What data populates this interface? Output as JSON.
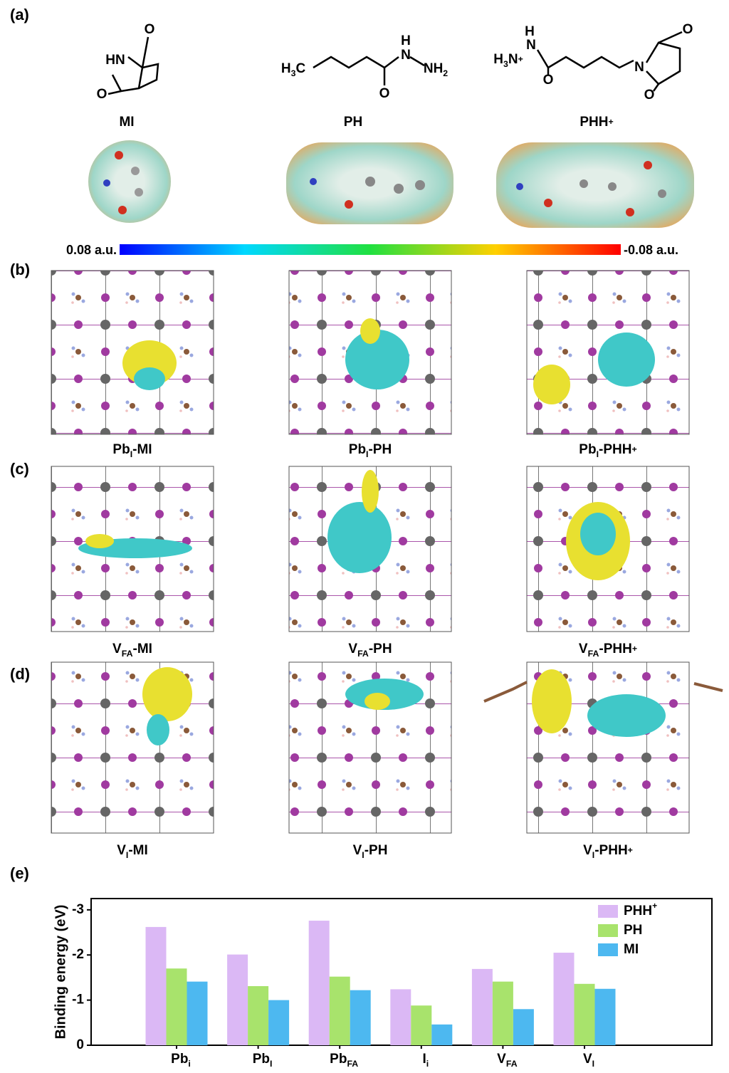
{
  "panel_labels": [
    "(a)",
    "(b)",
    "(c)",
    "(d)",
    "(e)"
  ],
  "molecules": [
    {
      "name": [
        {
          "t": "MI"
        }
      ],
      "atoms": [
        [
          {
            "t": "O"
          }
        ],
        [
          {
            "t": "HN"
          }
        ],
        [
          {
            "t": "O"
          }
        ]
      ]
    },
    {
      "name": [
        {
          "t": "PH"
        }
      ],
      "atoms": [
        [
          {
            "t": "H"
          },
          {
            "sub": "3"
          },
          {
            "t": "C"
          }
        ],
        [
          {
            "t": "H"
          }
        ],
        [
          {
            "t": "N"
          }
        ],
        [
          {
            "t": "N"
          },
          {
            "t": "H"
          },
          {
            "sub": "2"
          }
        ],
        [
          {
            "t": "O"
          }
        ]
      ]
    },
    {
      "name": [
        {
          "t": "PHH"
        },
        {
          "sup": "+"
        }
      ],
      "atoms": [
        [
          {
            "t": "H"
          }
        ],
        [
          {
            "t": "N"
          }
        ],
        [
          {
            "t": "H"
          },
          {
            "sub": "3"
          },
          {
            "t": "N"
          },
          {
            "sup": "+"
          }
        ],
        [
          {
            "t": "O"
          }
        ],
        [
          {
            "t": "N"
          }
        ],
        [
          {
            "t": "O"
          }
        ],
        [
          {
            "t": "O"
          }
        ]
      ]
    }
  ],
  "colorbar": {
    "min_label": "0.08 a.u.",
    "max_label": "-0.08 a.u."
  },
  "structures": {
    "b": [
      [
        {
          "t": "Pb"
        },
        {
          "sub": "I"
        },
        {
          "t": "-MI"
        }
      ],
      [
        {
          "t": "Pb"
        },
        {
          "sub": "I"
        },
        {
          "t": "-PH"
        }
      ],
      [
        {
          "t": "Pb"
        },
        {
          "sub": "I"
        },
        {
          "t": "-PHH"
        },
        {
          "sup": "+"
        }
      ]
    ],
    "c": [
      [
        {
          "t": "V"
        },
        {
          "sub": "FA"
        },
        {
          "t": "-MI"
        }
      ],
      [
        {
          "t": "V"
        },
        {
          "sub": "FA"
        },
        {
          "t": "-PH"
        }
      ],
      [
        {
          "t": "V"
        },
        {
          "sub": "FA"
        },
        {
          "t": "-PHH"
        },
        {
          "sup": "+"
        }
      ]
    ],
    "d": [
      [
        {
          "t": "V"
        },
        {
          "sub": "I"
        },
        {
          "t": "-MI"
        }
      ],
      [
        {
          "t": "V"
        },
        {
          "sub": "I"
        },
        {
          "t": "-PH"
        }
      ],
      [
        {
          "t": "V"
        },
        {
          "sub": "I"
        },
        {
          "t": "-PHH"
        },
        {
          "sup": "+"
        }
      ]
    ]
  },
  "chart_data": {
    "type": "bar",
    "y_label": "Binding energy (eV)",
    "categories": [
      [
        {
          "t": "Pb"
        },
        {
          "sub": "i"
        }
      ],
      [
        {
          "t": "Pb"
        },
        {
          "sub": "I"
        }
      ],
      [
        {
          "t": "Pb"
        },
        {
          "sub": "FA"
        }
      ],
      [
        {
          "t": "I"
        },
        {
          "sub": "i"
        }
      ],
      [
        {
          "t": "V"
        },
        {
          "sub": "FA"
        }
      ],
      [
        {
          "t": "V"
        },
        {
          "sub": "I"
        }
      ]
    ],
    "series": [
      {
        "name": "PHH",
        "name_sup": "+",
        "color": "#dbb8f5",
        "values": [
          -2.62,
          -2.01,
          -2.76,
          -1.24,
          -1.69,
          -2.05
        ]
      },
      {
        "name": "PH",
        "color": "#a8e36c",
        "values": [
          -1.7,
          -1.31,
          -1.52,
          -0.88,
          -1.41,
          -1.36
        ]
      },
      {
        "name": "MI",
        "color": "#4db8f0",
        "values": [
          -1.41,
          -1.0,
          -1.22,
          -0.46,
          -0.8,
          -1.25
        ]
      }
    ],
    "ylim": [
      0,
      -3.25
    ],
    "yticks": [
      0,
      -1,
      -2,
      -3
    ],
    "legend": "upper right"
  }
}
